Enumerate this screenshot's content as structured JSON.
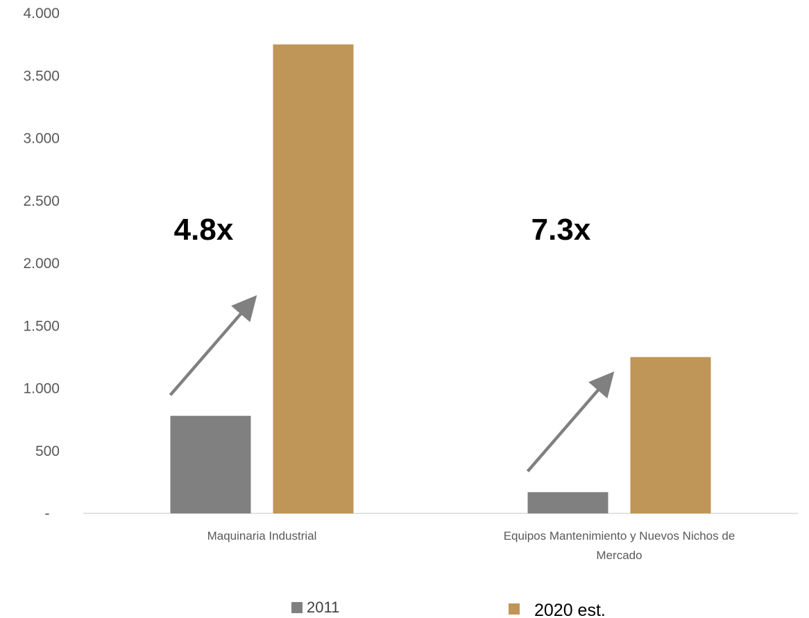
{
  "chart_data": {
    "type": "bar",
    "title": "",
    "xlabel": "",
    "ylabel": "",
    "ylim": [
      0,
      4000
    ],
    "yticks": [
      0,
      500,
      1000,
      1500,
      2000,
      2500,
      3000,
      3500,
      4000
    ],
    "ytick_labels": [
      "-",
      "500",
      "1.000",
      "1.500",
      "2.000",
      "2.500",
      "3.000",
      "3.500",
      "4.000"
    ],
    "categories": [
      [
        "Maquinaria Industrial"
      ],
      [
        "Equipos Mantenimiento y Nuevos Nichos de",
        "Mercado"
      ]
    ],
    "series": [
      {
        "name": "2011",
        "color": "#808080",
        "values": [
          780,
          170
        ]
      },
      {
        "name": "2020 est.",
        "color": "#bf9558",
        "values": [
          3750,
          1250
        ]
      }
    ],
    "annotations": [
      {
        "text": "4.8x",
        "category": 0
      },
      {
        "text": "7.3x",
        "category": 1
      }
    ],
    "arrow_color": "#808080",
    "axis_color": "#d9d9d9",
    "grid": false,
    "legend_position": "bottom"
  }
}
